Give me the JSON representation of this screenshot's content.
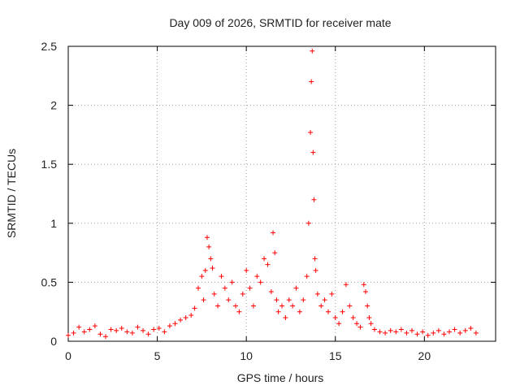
{
  "chart_data": {
    "type": "scatter",
    "title": "Day 009 of 2026, SRMTID for receiver mate",
    "xlabel": "GPS time / hours",
    "ylabel": "SRMTID / TECUs",
    "xlim": [
      0,
      24
    ],
    "ylim": [
      0,
      2.5
    ],
    "xticks": [
      0,
      5,
      10,
      15,
      20
    ],
    "xtick_labels": [
      "0",
      "5",
      "10",
      "15",
      "20"
    ],
    "yticks": [
      0,
      0.5,
      1,
      1.5,
      2,
      2.5
    ],
    "ytick_labels": [
      "0",
      "0.5",
      "1",
      "1.5",
      "2",
      "2.5"
    ],
    "grid": true,
    "marker": "+",
    "color": "#ff0000",
    "series": [
      {
        "name": "SRMTID",
        "x": [
          0.0,
          0.3,
          0.6,
          0.9,
          1.2,
          1.5,
          1.8,
          2.1,
          2.4,
          2.7,
          3.0,
          3.3,
          3.6,
          3.9,
          4.2,
          4.5,
          4.8,
          5.1,
          5.4,
          5.7,
          6.0,
          6.3,
          6.6,
          6.9,
          7.1,
          7.3,
          7.5,
          7.6,
          7.7,
          7.8,
          7.9,
          8.0,
          8.1,
          8.2,
          8.4,
          8.6,
          8.8,
          9.0,
          9.2,
          9.4,
          9.6,
          9.8,
          10.0,
          10.2,
          10.4,
          10.6,
          10.8,
          11.0,
          11.2,
          11.4,
          11.5,
          11.6,
          11.7,
          11.8,
          12.0,
          12.2,
          12.4,
          12.6,
          12.8,
          13.0,
          13.2,
          13.4,
          13.5,
          13.6,
          13.65,
          13.7,
          13.75,
          13.8,
          13.85,
          13.9,
          14.0,
          14.2,
          14.4,
          14.6,
          14.8,
          15.0,
          15.2,
          15.4,
          15.6,
          15.8,
          16.0,
          16.2,
          16.4,
          16.6,
          16.7,
          16.8,
          16.9,
          17.0,
          17.2,
          17.5,
          17.8,
          18.1,
          18.4,
          18.7,
          19.0,
          19.3,
          19.6,
          19.9,
          20.2,
          20.5,
          20.8,
          21.1,
          21.4,
          21.7,
          22.0,
          22.3,
          22.6,
          22.9
        ],
        "y": [
          0.05,
          0.07,
          0.12,
          0.08,
          0.1,
          0.13,
          0.06,
          0.04,
          0.1,
          0.09,
          0.11,
          0.08,
          0.07,
          0.12,
          0.09,
          0.06,
          0.1,
          0.11,
          0.08,
          0.13,
          0.15,
          0.18,
          0.2,
          0.22,
          0.28,
          0.45,
          0.55,
          0.35,
          0.6,
          0.88,
          0.8,
          0.7,
          0.62,
          0.4,
          0.3,
          0.55,
          0.45,
          0.35,
          0.5,
          0.3,
          0.25,
          0.4,
          0.6,
          0.45,
          0.3,
          0.55,
          0.5,
          0.7,
          0.65,
          0.42,
          0.92,
          0.75,
          0.35,
          0.25,
          0.3,
          0.2,
          0.35,
          0.3,
          0.45,
          0.25,
          0.35,
          0.55,
          1.0,
          1.77,
          2.2,
          2.46,
          1.6,
          1.2,
          0.7,
          0.6,
          0.4,
          0.3,
          0.35,
          0.25,
          0.4,
          0.2,
          0.15,
          0.25,
          0.48,
          0.3,
          0.2,
          0.15,
          0.12,
          0.48,
          0.42,
          0.3,
          0.2,
          0.15,
          0.1,
          0.08,
          0.07,
          0.09,
          0.08,
          0.1,
          0.07,
          0.09,
          0.06,
          0.08,
          0.05,
          0.07,
          0.09,
          0.06,
          0.08,
          0.1,
          0.07,
          0.09,
          0.11,
          0.07
        ]
      }
    ]
  }
}
